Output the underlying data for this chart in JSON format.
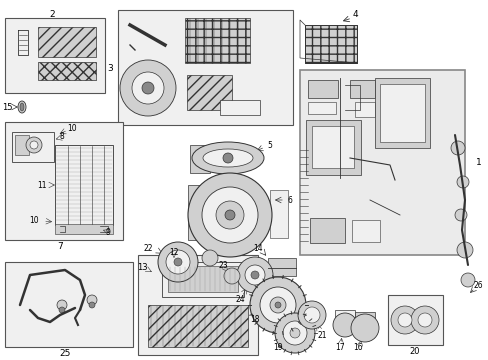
{
  "bg": "#ffffff",
  "fig_w": 4.89,
  "fig_h": 3.6,
  "dpi": 100,
  "gray_light": "#f0f0f0",
  "gray_mid": "#d0d0d0",
  "gray_dark": "#888888",
  "line_c": "#333333",
  "box_ec": "#555555"
}
